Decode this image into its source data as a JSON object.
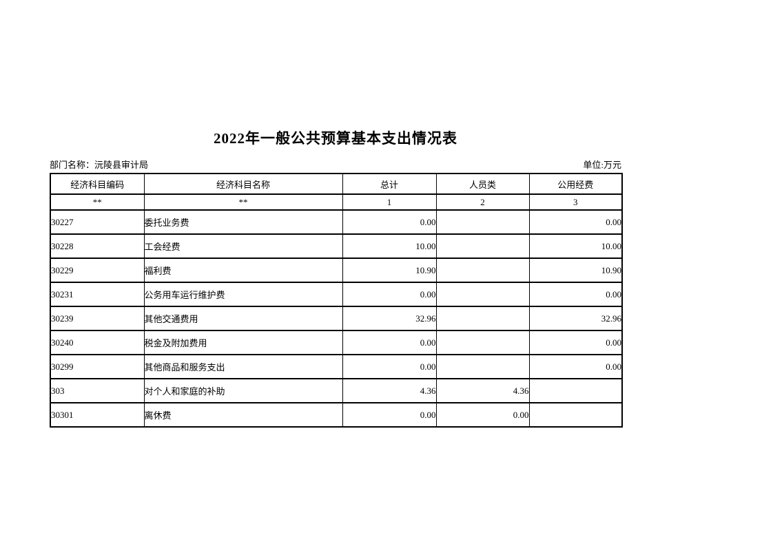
{
  "page": {
    "title": "2022年一般公共预算基本支出情况表",
    "department_label": "部门名称：沅陵县审计局",
    "unit_label": "单位:万元"
  },
  "table": {
    "columns": [
      "经济科目编码",
      "经济科目名称",
      "总计",
      "人员类",
      "公用经费"
    ],
    "subheader": [
      "**",
      "**",
      "1",
      "2",
      "3"
    ],
    "rows": [
      {
        "code": "30227",
        "name": "委托业务费",
        "total": "0.00",
        "personnel": "",
        "public": "0.00",
        "code_indent": 1,
        "name_indent": 0
      },
      {
        "code": "30228",
        "name": "工会经费",
        "total": "10.00",
        "personnel": "",
        "public": "10.00",
        "code_indent": 2,
        "name_indent": 1
      },
      {
        "code": "30229",
        "name": "福利费",
        "total": "10.90",
        "personnel": "",
        "public": "10.90",
        "code_indent": 2,
        "name_indent": 1
      },
      {
        "code": "30231",
        "name": "公务用车运行维护费",
        "total": "0.00",
        "personnel": "",
        "public": "0.00",
        "code_indent": 2,
        "name_indent": 1
      },
      {
        "code": "30239",
        "name": "其他交通费用",
        "total": "32.96",
        "personnel": "",
        "public": "32.96",
        "code_indent": 2,
        "name_indent": 1
      },
      {
        "code": "30240",
        "name": "税金及附加费用",
        "total": "0.00",
        "personnel": "",
        "public": "0.00",
        "code_indent": 2,
        "name_indent": 0
      },
      {
        "code": "30299",
        "name": "其他商品和服务支出",
        "total": "0.00",
        "personnel": "",
        "public": "0.00",
        "code_indent": 2,
        "name_indent": 1
      },
      {
        "code": "303",
        "name": "对个人和家庭的补助",
        "total": "4.36",
        "personnel": "4.36",
        "public": "",
        "code_indent": 0,
        "name_indent": 0
      },
      {
        "code": "30301",
        "name": "离休费",
        "total": "0.00",
        "personnel": "0.00",
        "public": "",
        "code_indent": 2,
        "name_indent": 1
      }
    ]
  }
}
